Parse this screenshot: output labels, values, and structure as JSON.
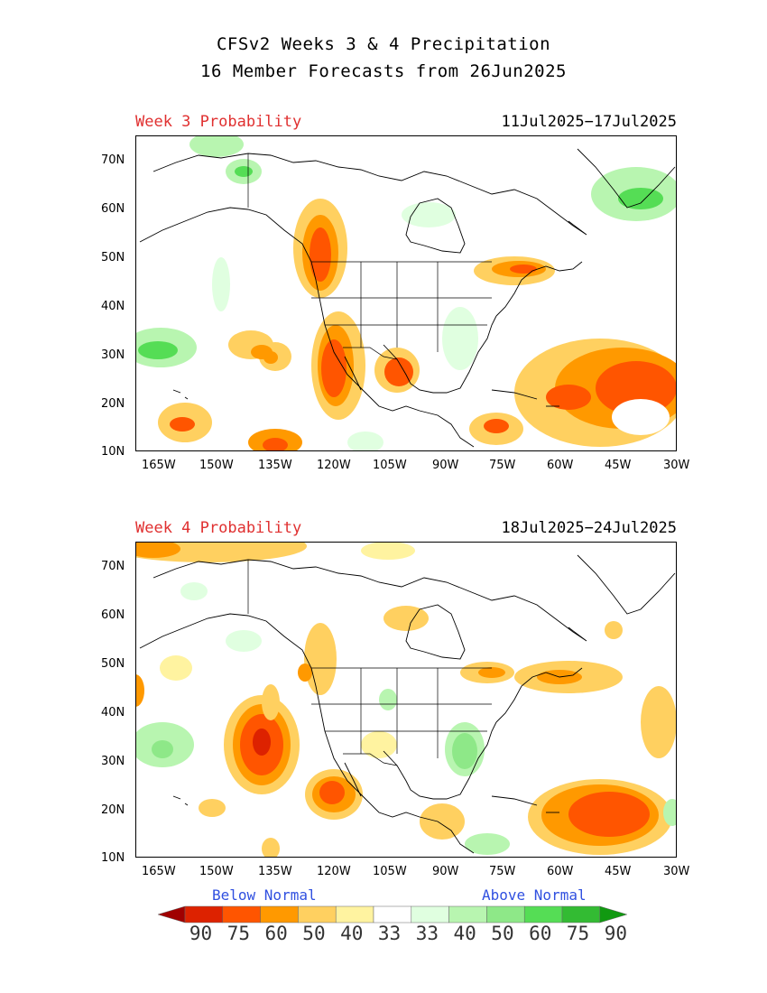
{
  "header": {
    "line1": "CFSv2 Weeks 3 & 4 Precipitation",
    "line2": "16 Member Forecasts from 26Jun2025"
  },
  "panels": [
    {
      "label": "Week 3 Probability",
      "dates": "11Jul2025−17Jul2025"
    },
    {
      "label": "Week 4 Probability",
      "dates": "18Jul2025−24Jul2025"
    }
  ],
  "axes": {
    "lat_labels": [
      "70N",
      "60N",
      "50N",
      "40N",
      "30N",
      "20N",
      "10N"
    ],
    "lon_labels": [
      "165W",
      "150W",
      "135W",
      "120W",
      "105W",
      "90W",
      "75W",
      "60W",
      "45W",
      "30W"
    ]
  },
  "legend": {
    "below_label": "Below Normal",
    "above_label": "Above Normal",
    "values": [
      "90",
      "75",
      "60",
      "50",
      "40",
      "33",
      "33",
      "40",
      "50",
      "60",
      "75",
      "90"
    ],
    "colors": [
      "#a00000",
      "#dd2200",
      "#ff5500",
      "#ff9900",
      "#ffd060",
      "#fff3a0",
      "#ffffff",
      "#e0ffe0",
      "#b8f5b0",
      "#8ee888",
      "#55dd55",
      "#33bb33",
      "#119911"
    ]
  }
}
